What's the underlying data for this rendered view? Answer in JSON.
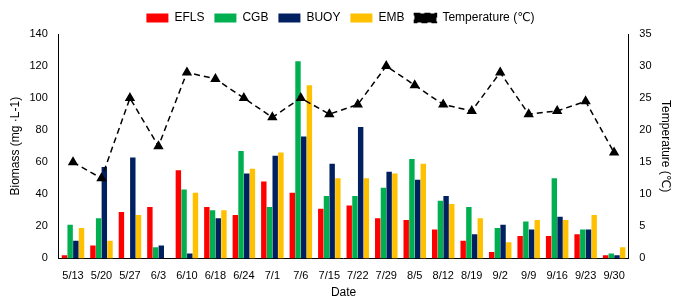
{
  "chart_data": {
    "type": "bar",
    "x_label": "Date",
    "y_label": "Biomass (mg ·L-1)",
    "y2_label": "Temperature (℃)",
    "categories": [
      "5/13",
      "5/20",
      "5/27",
      "6/3",
      "6/10",
      "6/18",
      "6/24",
      "7/1",
      "7/6",
      "7/15",
      "7/22",
      "7/29",
      "8/5",
      "8/12",
      "8/19",
      "9/2",
      "9/9",
      "9/16",
      "9/23",
      "9/30"
    ],
    "series": [
      {
        "name": "EFLS",
        "color": "#ff0000",
        "values": [
          2,
          8,
          29,
          32,
          55,
          32,
          27,
          48,
          41,
          31,
          33,
          25,
          24,
          18,
          11,
          4,
          14,
          14,
          15,
          2
        ]
      },
      {
        "name": "CGB",
        "color": "#00b050",
        "values": [
          21,
          25,
          null,
          7,
          43,
          30,
          67,
          32,
          123,
          39,
          39,
          44,
          62,
          36,
          32,
          19,
          23,
          50,
          18,
          3
        ]
      },
      {
        "name": "BUOY",
        "color": "#002060",
        "values": [
          11,
          57,
          63,
          8,
          3,
          25,
          53,
          64,
          76,
          59,
          82,
          54,
          49,
          39,
          15,
          21,
          18,
          26,
          18,
          2
        ]
      },
      {
        "name": "EMB",
        "color": "#ffc000",
        "values": [
          19,
          11,
          27,
          null,
          41,
          30,
          56,
          66,
          108,
          50,
          50,
          53,
          59,
          34,
          25,
          10,
          24,
          24,
          27,
          7
        ]
      },
      {
        "name": "Temperature (℃)",
        "color": "#000000",
        "type": "line",
        "axis": "y2",
        "line_style": "dashed",
        "marker": "triangle",
        "values": [
          15,
          12.5,
          25,
          17.5,
          29,
          28,
          25,
          22,
          25,
          22.5,
          24,
          30,
          27,
          24,
          23,
          29,
          22.5,
          23,
          24.5,
          16.5
        ]
      }
    ],
    "ylim": [
      0,
      140
    ],
    "yticks": [
      0,
      20,
      40,
      60,
      80,
      100,
      120,
      140
    ],
    "y2lim": [
      0,
      35
    ],
    "y2ticks": [
      0,
      5,
      10,
      15,
      20,
      25,
      30,
      35
    ],
    "grid": false,
    "legend": "top"
  }
}
